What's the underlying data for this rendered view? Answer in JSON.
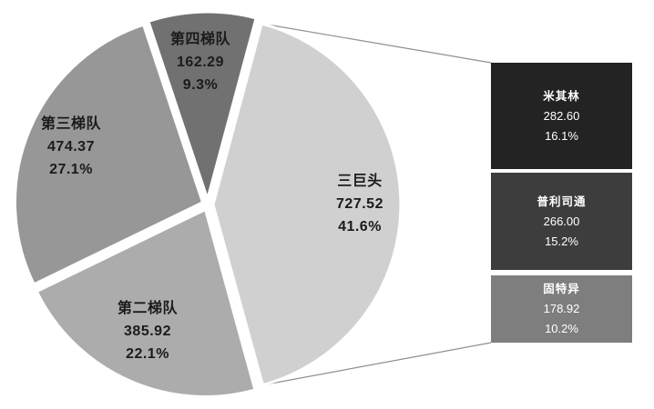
{
  "colors": {
    "background": "#ffffff",
    "pie_label_text": "#1b1b1b",
    "box_text": "#ffffff",
    "slice_border": "#ffffff",
    "connector_line": "#8f8f8f"
  },
  "chart_data": {
    "type": "pie",
    "subtype": "bar-of-pie",
    "title": "",
    "legend": "none",
    "pie": {
      "start_angle_deg": 15,
      "slices": [
        {
          "key": "big-three",
          "label": "三巨头",
          "value": "727.52",
          "pct": "41.6%",
          "num": 727.52,
          "color": "#d0d0d0"
        },
        {
          "key": "tier-2",
          "label": "第二梯队",
          "value": "385.92",
          "pct": "22.1%",
          "num": 385.92,
          "color": "#acacac"
        },
        {
          "key": "tier-3",
          "label": "第三梯队",
          "value": "474.37",
          "pct": "27.1%",
          "num": 474.37,
          "color": "#979797"
        },
        {
          "key": "tier-4",
          "label": "第四梯队",
          "value": "162.29",
          "pct": "9.3%",
          "num": 162.29,
          "color": "#717171"
        }
      ]
    },
    "breakdown": {
      "parent_label": "三巨头",
      "bars": [
        {
          "key": "michelin",
          "label": "米其林",
          "value": "282.60",
          "pct": "16.1%",
          "num": 282.6,
          "color": "#232323"
        },
        {
          "key": "bridgestone",
          "label": "普利司通",
          "value": "266.00",
          "pct": "15.2%",
          "num": 266.0,
          "color": "#3d3d3d"
        },
        {
          "key": "goodyear",
          "label": "固特异",
          "value": "178.92",
          "pct": "10.2%",
          "num": 178.92,
          "color": "#7e7e7e"
        }
      ]
    }
  }
}
